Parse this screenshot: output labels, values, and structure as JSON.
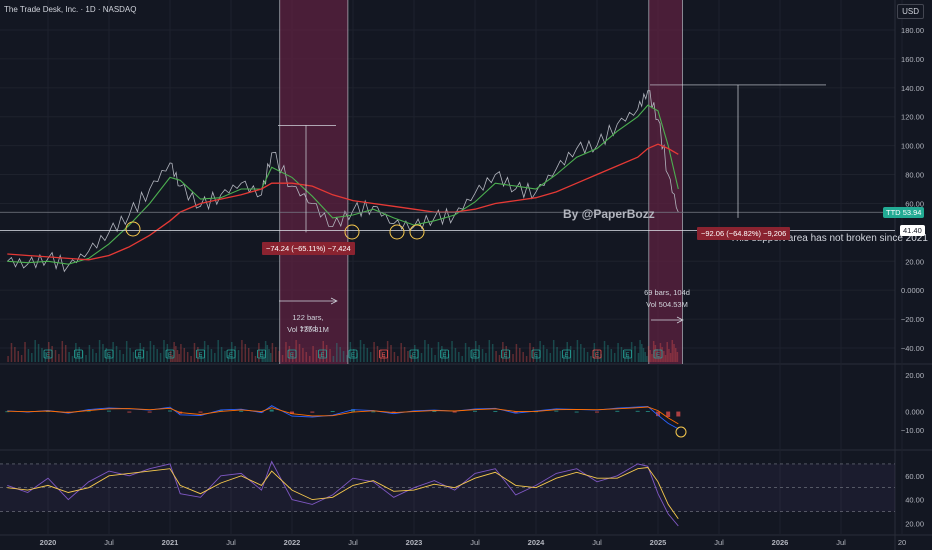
{
  "header": {
    "symbol_title": "The Trade Desk, Inc. · 1D · NASDAQ",
    "currency_button": "USD"
  },
  "annotations": {
    "watermark": "By @PaperBozz",
    "support_note": "This support area has not broken since 2021",
    "drop1_label": "−74.24 (−65.11%) −7,424",
    "drop2_label": "−92.06 (−64.82%) −9,206",
    "range1_bars": "122 bars, 177d",
    "range1_vol": "Vol 735.81M",
    "range2_bars": "69 bars, 104d",
    "range2_vol": "Vol 504.53M"
  },
  "price_tags": {
    "ttd_label": "TTD",
    "ttd_value": "53.94",
    "support_value": "41.40"
  },
  "colors": {
    "background": "#131722",
    "grid": "#1e222d",
    "price_line": "#b2b5be",
    "ma_fast": "#4caf50",
    "ma_slow": "#e53935",
    "highlight": "#5d2140",
    "macd": "#2962ff",
    "signal": "#ff6d00",
    "rsi": "#7e57c2",
    "rsi_ma": "#f7c94d",
    "ttd_tag": "#22ab94"
  },
  "chart_data": [
    {
      "type": "line",
      "title": "The Trade Desk, Inc. · 1D · NASDAQ",
      "xlabel": "",
      "ylabel": "",
      "x_ticks": [
        "2020",
        "Jul",
        "2021",
        "Jul",
        "2022",
        "Jul",
        "2023",
        "Jul",
        "2024",
        "Jul",
        "2025",
        "Jul",
        "2026",
        "Jul",
        "20"
      ],
      "y_ticks": [
        "180.00",
        "160.00",
        "140.00",
        "120.00",
        "100.00",
        "80.00",
        "60.00",
        "40.00",
        "20.00",
        "0.0000",
        "−20.00",
        "−40.00"
      ],
      "ylim": [
        -40,
        180
      ],
      "x": [
        "2019-09",
        "2019-11",
        "2020-01",
        "2020-03",
        "2020-05",
        "2020-07",
        "2020-09",
        "2020-11",
        "2021-01",
        "2021-02",
        "2021-04",
        "2021-06",
        "2021-08",
        "2021-10",
        "2021-11",
        "2022-01",
        "2022-03",
        "2022-05",
        "2022-07",
        "2022-09",
        "2022-11",
        "2023-01",
        "2023-03",
        "2023-05",
        "2023-07",
        "2023-09",
        "2023-11",
        "2024-01",
        "2024-03",
        "2024-05",
        "2024-07",
        "2024-09",
        "2024-11",
        "2024-12",
        "2025-01",
        "2025-02",
        "2025-03"
      ],
      "series": [
        {
          "values": [
            20,
            18,
            22,
            17,
            27,
            40,
            52,
            70,
            88,
            72,
            58,
            66,
            74,
            66,
            95,
            72,
            60,
            44,
            55,
            58,
            46,
            44,
            50,
            52,
            67,
            80,
            70,
            68,
            84,
            98,
            100,
            115,
            125,
            138,
            118,
            80,
            54
          ]
        },
        {
          "values": [
            20,
            19,
            20,
            18,
            22,
            32,
            45,
            60,
            78,
            76,
            63,
            64,
            70,
            70,
            85,
            78,
            65,
            50,
            52,
            56,
            50,
            45,
            48,
            52,
            61,
            74,
            72,
            70,
            80,
            92,
            98,
            110,
            120,
            128,
            124,
            100,
            70
          ]
        },
        {
          "values": [
            25,
            24,
            23,
            22,
            21,
            24,
            30,
            38,
            48,
            54,
            60,
            63,
            66,
            70,
            74,
            74,
            72,
            66,
            62,
            60,
            58,
            56,
            54,
            54,
            56,
            60,
            62,
            64,
            68,
            74,
            80,
            86,
            92,
            98,
            101,
            98,
            94
          ]
        }
      ],
      "levels": [
        {
          "label": "41.40",
          "value": 41.4
        },
        {
          "label": "53.94",
          "value": 53.94
        }
      ]
    },
    {
      "type": "line",
      "title": "",
      "y_ticks": [
        "20.00",
        "0.000",
        "−10.00"
      ],
      "ylim": [
        -20,
        25
      ],
      "series": [
        {
          "values": [
            0.4,
            -0.3,
            0.6,
            -0.9,
            1.1,
            2.0,
            1.5,
            0.8,
            2.4,
            -1.8,
            -2.2,
            0.9,
            1.3,
            -0.6,
            3.2,
            -2.5,
            -3.0,
            -2.0,
            1.0,
            0.5,
            -1.2,
            0.4,
            0.8,
            0.2,
            1.4,
            1.8,
            -0.9,
            0.3,
            1.5,
            1.2,
            0.8,
            1.9,
            2.5,
            2.8,
            -2.0,
            -6.5,
            -9.5
          ]
        },
        {
          "values": [
            0.2,
            -0.1,
            0.3,
            -0.5,
            0.6,
            1.5,
            1.6,
            1.0,
            1.8,
            -0.6,
            -1.6,
            0.1,
            0.9,
            0.0,
            2.1,
            -1.2,
            -2.4,
            -2.3,
            -0.3,
            0.4,
            -0.6,
            0.0,
            0.5,
            0.3,
            1.0,
            1.5,
            0.1,
            0.1,
            1.0,
            1.2,
            1.0,
            1.5,
            2.1,
            2.5,
            0.5,
            -3.5,
            -6.8
          ]
        }
      ]
    },
    {
      "type": "line",
      "title": "",
      "y_ticks": [
        "60.00",
        "40.00",
        "20.00"
      ],
      "ylim": [
        12,
        80
      ],
      "series": [
        {
          "values": [
            52,
            46,
            58,
            40,
            55,
            64,
            60,
            66,
            70,
            45,
            42,
            60,
            62,
            48,
            72,
            40,
            36,
            44,
            58,
            55,
            42,
            50,
            56,
            48,
            62,
            66,
            44,
            52,
            62,
            66,
            55,
            60,
            70,
            68,
            45,
            28,
            18
          ]
        },
        {
          "values": [
            50,
            48,
            52,
            46,
            50,
            60,
            62,
            64,
            66,
            52,
            45,
            54,
            60,
            52,
            64,
            48,
            40,
            42,
            52,
            56,
            47,
            48,
            53,
            50,
            58,
            63,
            52,
            50,
            58,
            63,
            58,
            58,
            66,
            67,
            55,
            36,
            24
          ]
        }
      ]
    }
  ]
}
